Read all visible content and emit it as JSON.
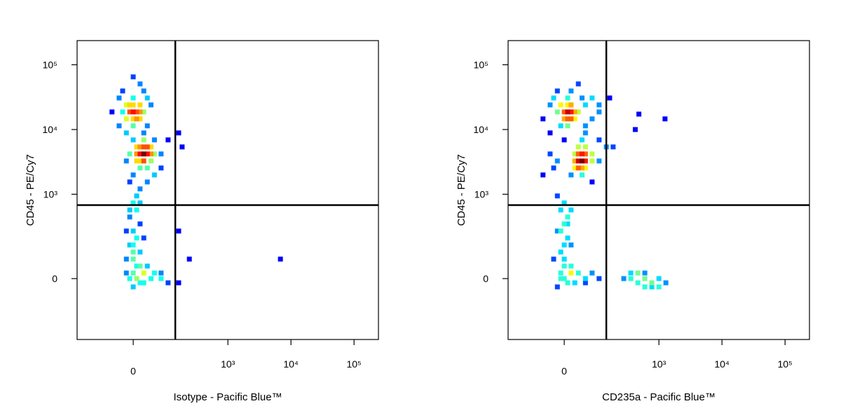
{
  "chart_data": [
    {
      "type": "scatter",
      "scale": "biexponential",
      "x_label": "Isotype - Pacific Blue™",
      "y_label": "CD45 - PE/Cy7",
      "xlim": [
        -241,
        243600
      ],
      "ylim": [
        -430,
        236000
      ],
      "xticks": [
        0,
        {
          "value": 1000,
          "label": "10³"
        },
        {
          "value": 10000,
          "label": "10⁴"
        },
        {
          "value": 100000,
          "label": "10⁵"
        }
      ],
      "yticks": [
        0,
        {
          "value": 1000,
          "label": "10³"
        },
        {
          "value": 10000,
          "label": "10⁴"
        },
        {
          "value": 100000,
          "label": "10⁵"
        }
      ],
      "gates": {
        "x": 140,
        "y": 678
      },
      "x": [
        0,
        8,
        -8,
        0,
        8,
        0,
        -8,
        16,
        -16,
        16,
        -16,
        16,
        25,
        -25,
        0,
        0,
        -34,
        34,
        -25,
        16,
        0,
        25,
        -34,
        34,
        -54,
        44,
        -16,
        25,
        25,
        16,
        34,
        25,
        25,
        16,
        34,
        44,
        8,
        54,
        16,
        44,
        16,
        34,
        25,
        44,
        8,
        8,
        -8,
        76,
        0,
        54,
        76,
        -16,
        0,
        34,
        104,
        183,
        160,
        -8,
        16,
        54,
        0,
        8,
        -8,
        16,
        0,
        8,
        -8,
        16,
        0,
        8,
        0,
        -8,
        16,
        0,
        25,
        -16,
        25,
        -16,
        8,
        16,
        -8,
        0,
        8,
        16,
        0,
        -16,
        25,
        34,
        44,
        54,
        76,
        104,
        76,
        241,
        6807,
        160,
        160
      ],
      "y": [
        18700,
        18700,
        18700,
        24000,
        14600,
        14600,
        24000,
        18700,
        24000,
        24000,
        14600,
        14600,
        18700,
        18700,
        30700,
        11400,
        30700,
        30700,
        39400,
        50600,
        65000,
        39400,
        11400,
        11400,
        18700,
        24000,
        8870,
        8870,
        4200,
        4200,
        4200,
        5390,
        3270,
        3270,
        5390,
        4200,
        4200,
        4200,
        5390,
        5390,
        2550,
        2550,
        6920,
        3270,
        3270,
        5390,
        4200,
        4200,
        6920,
        6920,
        2550,
        3270,
        1990,
        1550,
        6920,
        5390,
        8870,
        1550,
        1210,
        1990,
        733,
        569,
        441,
        342,
        262,
        200,
        150,
        109,
        75,
        46,
        20,
        0,
        -15,
        -30,
        20,
        75,
        200,
        262,
        942,
        733,
        569,
        109,
        0,
        46,
        150,
        20,
        -15,
        46,
        0,
        20,
        0,
        -15,
        20,
        75,
        75,
        262,
        -15
      ]
    },
    {
      "type": "scatter",
      "scale": "biexponential",
      "x_label": "CD235a - Pacific Blue™",
      "y_label": "CD45 - PE/Cy7",
      "xlim": [
        -241,
        243600
      ],
      "ylim": [
        -430,
        236000
      ],
      "xticks": [
        0,
        {
          "value": 1000,
          "label": "10³"
        },
        {
          "value": 10000,
          "label": "10⁴"
        },
        {
          "value": 100000,
          "label": "10⁵"
        }
      ],
      "yticks": [
        0,
        {
          "value": 1000,
          "label": "10³"
        },
        {
          "value": 10000,
          "label": "10⁴"
        },
        {
          "value": 100000,
          "label": "10⁵"
        }
      ],
      "gates": {
        "x": 140,
        "y": 678
      },
      "x": [
        8,
        16,
        0,
        8,
        16,
        8,
        0,
        16,
        -16,
        25,
        -8,
        25,
        34,
        -8,
        8,
        8,
        -34,
        -25,
        44,
        54,
        76,
        104,
        160,
        -54,
        -34,
        54,
        76,
        104,
        16,
        -16,
        34,
        44,
        34,
        54,
        44,
        44,
        34,
        54,
        34,
        25,
        76,
        25,
        54,
        54,
        34,
        25,
        76,
        44,
        44,
        -16,
        -34,
        104,
        140,
        104,
        16,
        76,
        -25,
        0,
        183,
        -54,
        420,
        480,
        1250,
        54,
        0,
        -8,
        8,
        0,
        -16,
        8,
        0,
        -8,
        0,
        16,
        -8,
        0,
        8,
        -16,
        8,
        -8,
        16,
        0,
        -8,
        16,
        25,
        -25,
        16,
        -16,
        34,
        54,
        76,
        104,
        54,
        356,
        462,
        597,
        772,
        1000,
        597,
        462,
        772,
        1000,
        274,
        597,
        1290,
        356
      ],
      "y": [
        18700,
        18700,
        14600,
        14600,
        14600,
        24000,
        18700,
        24000,
        18700,
        18700,
        24000,
        14600,
        18700,
        11400,
        11400,
        30700,
        24000,
        30700,
        30700,
        24000,
        30700,
        24000,
        30700,
        14600,
        8870,
        11400,
        14600,
        18700,
        39400,
        39400,
        50600,
        3270,
        3270,
        3270,
        4200,
        2550,
        4200,
        4200,
        2550,
        3270,
        3270,
        4200,
        2550,
        5390,
        5390,
        2550,
        4200,
        6920,
        1990,
        3270,
        4200,
        3270,
        5390,
        6920,
        1990,
        1550,
        2550,
        6920,
        5390,
        1990,
        10000,
        17300,
        14600,
        8870,
        733,
        569,
        441,
        342,
        262,
        200,
        150,
        109,
        75,
        46,
        20,
        0,
        -15,
        -30,
        342,
        262,
        150,
        46,
        0,
        20,
        -15,
        75,
        569,
        942,
        20,
        0,
        20,
        0,
        -15,
        0,
        -15,
        0,
        -15,
        0,
        20,
        20,
        -30,
        -30,
        0,
        -30,
        -15,
        20
      ]
    }
  ]
}
